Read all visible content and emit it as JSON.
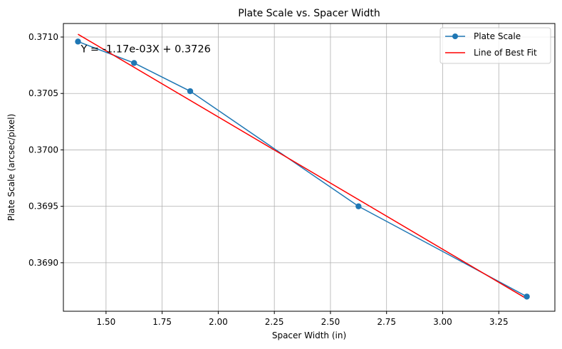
{
  "chart_data": {
    "type": "line",
    "title": "Plate Scale vs. Spacer Width",
    "xlabel": "Spacer Width (in)",
    "ylabel": "Plate Scale (arcsec/pixel)",
    "xlim": [
      1.31,
      3.5
    ],
    "ylim": [
      0.36857,
      0.37112
    ],
    "x_ticks": [
      "1.50",
      "1.75",
      "2.00",
      "2.25",
      "2.50",
      "2.75",
      "3.00",
      "3.25"
    ],
    "y_ticks": [
      "0.3690",
      "0.3695",
      "0.3700",
      "0.3705",
      "0.3710"
    ],
    "grid": true,
    "legend_position": "top-right",
    "series": [
      {
        "name": "Plate Scale",
        "kind": "line-with-markers",
        "color": "#1f77b4",
        "x": [
          1.375,
          1.625,
          1.875,
          2.625,
          3.375
        ],
        "y": [
          0.37096,
          0.37077,
          0.37052,
          0.3695,
          0.3687
        ]
      },
      {
        "name": "Line of Best Fit",
        "kind": "line",
        "color": "#ff0000",
        "x": [
          1.375,
          3.375
        ],
        "y": [
          0.371025,
          0.36868
        ]
      }
    ],
    "annotations": [
      {
        "text": "Y = -1.17e-03X + 0.3726",
        "x": 1.375,
        "y": 0.37092
      }
    ]
  }
}
